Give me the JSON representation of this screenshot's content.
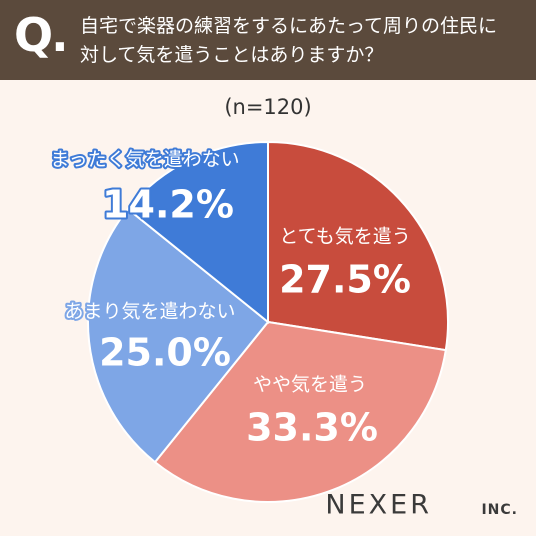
{
  "header_label": "Q.",
  "chart_data": {
    "type": "pie",
    "title": "自宅で楽器の練習をするにあたって周りの住民に対して気を遣うことはありますか？",
    "subtitle": "(n=120)",
    "categories": [
      "とても気を遣う",
      "やや気を遣う",
      "あまり気を遣わない",
      "まったく気を遣わない"
    ],
    "values": [
      27.5,
      33.3,
      25.0,
      14.2
    ],
    "value_labels": [
      "27.5%",
      "33.3%",
      "25.0%",
      "14.2%"
    ],
    "colors": [
      "#c84c3d",
      "#ec9086",
      "#7ea6e6",
      "#3f7bd7"
    ]
  },
  "brand": "NEXER",
  "brand_suffix": "INC."
}
